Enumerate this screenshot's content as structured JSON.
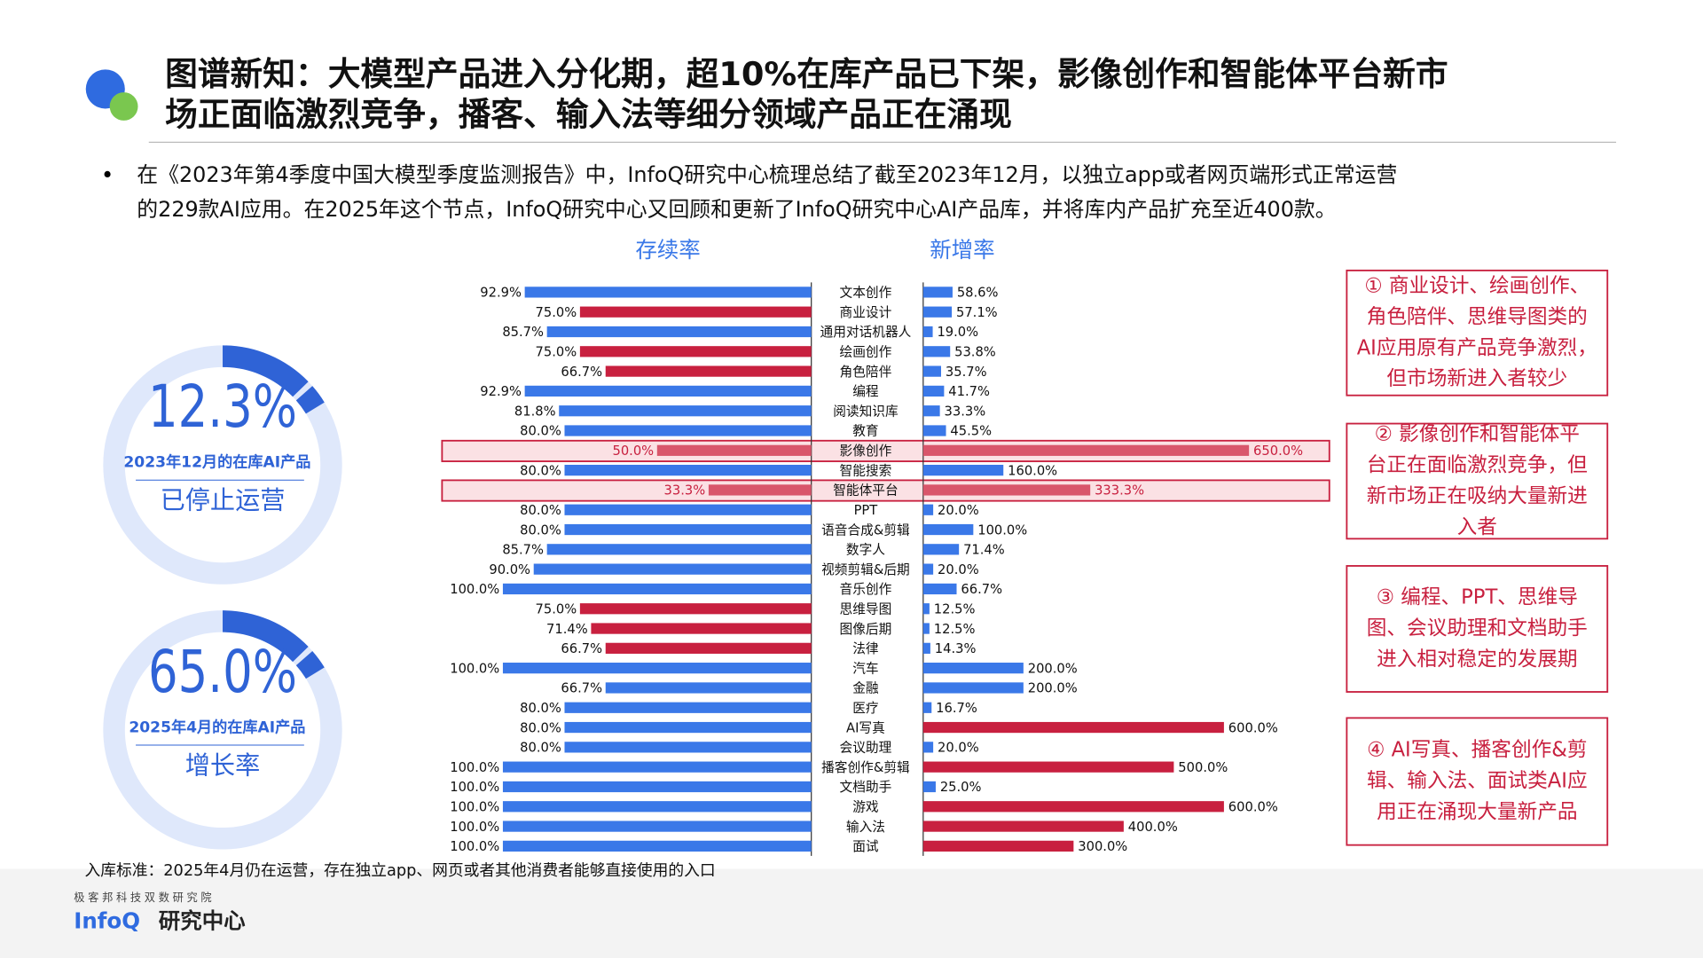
{
  "header": {
    "title_lines": [
      "图谱新知：大模型产品进入分化期，超10%在库产品已下架，影像创作和智能体平台新市",
      "场正面临激烈竞争，播客、输入法等细分领域产品正在涌现"
    ]
  },
  "bullet": {
    "lines": [
      "在《2023年第4季度中国大模型季度监测报告》中，InfoQ研究中心梳理总结了截至2023年12月，以独立app或者网页端形式正常运营",
      "的229款AI应用。在2025年这个节点，InfoQ研究中心又回顾和更新了InfoQ研究中心AI产品库，并将库内产品扩充至近400款。"
    ]
  },
  "kpis": [
    {
      "value": "12.3%",
      "caption": "2023年12月的在库AI产品",
      "label": "已停止运营"
    },
    {
      "value": "65.0%",
      "caption": "2025年4月的在库AI产品",
      "label": "增长率"
    }
  ],
  "chart_data": {
    "type": "butterfly",
    "categories": [
      "文本创作",
      "商业设计",
      "通用对话机器人",
      "绘画创作",
      "角色陪伴",
      "编程",
      "阅读知识库",
      "教育",
      "影像创作",
      "智能搜索",
      "智能体平台",
      "PPT",
      "语音合成&剪辑",
      "数字人",
      "视频剪辑&后期",
      "音乐创作",
      "思维导图",
      "图像后期",
      "法律",
      "汽车",
      "金融",
      "医疗",
      "AI写真",
      "会议助理",
      "播客创作&剪辑",
      "文档助手",
      "游戏",
      "输入法",
      "面试"
    ],
    "xlim": [
      0,
      100
    ],
    "x2lim": [
      0,
      650
    ],
    "highlight_rows": [
      8,
      10
    ],
    "series": [
      {
        "name": "存续率",
        "color": "#3a78e8",
        "colors": [
          "#3a78e8",
          "#c8203f",
          "#3a78e8",
          "#c8203f",
          "#c8203f",
          "#3a78e8",
          "#3a78e8",
          "#3a78e8",
          "#d9566b",
          "#3a78e8",
          "#d9566b",
          "#3a78e8",
          "#3a78e8",
          "#3a78e8",
          "#3a78e8",
          "#3a78e8",
          "#c8203f",
          "#c8203f",
          "#c8203f",
          "#3a78e8",
          "#3a78e8",
          "#3a78e8",
          "#3a78e8",
          "#3a78e8",
          "#3a78e8",
          "#3a78e8",
          "#3a78e8",
          "#3a78e8",
          "#3a78e8"
        ],
        "values": [
          92.9,
          75.0,
          85.7,
          75.0,
          66.7,
          92.9,
          81.8,
          80.0,
          50.0,
          80.0,
          33.3,
          80.0,
          80.0,
          85.7,
          90.0,
          100.0,
          75.0,
          71.4,
          66.7,
          100.0,
          66.7,
          80.0,
          80.0,
          80.0,
          100.0,
          100.0,
          100.0,
          100.0,
          100.0
        ],
        "value_labels": [
          "92.9%",
          "75.0%",
          "85.7%",
          "75.0%",
          "66.7%",
          "92.9%",
          "81.8%",
          "80.0%",
          "50.0%",
          "80.0%",
          "33.3%",
          "80.0%",
          "80.0%",
          "85.7%",
          "90.0%",
          "100.0%",
          "75.0%",
          "71.4%",
          "66.7%",
          "100.0%",
          "66.7%",
          "80.0%",
          "80.0%",
          "80.0%",
          "100.0%",
          "100.0%",
          "100.0%",
          "100.0%",
          "100.0%"
        ]
      },
      {
        "name": "新增率",
        "color": "#3a78e8",
        "axis": "x2",
        "colors": [
          "#3a78e8",
          "#3a78e8",
          "#3a78e8",
          "#3a78e8",
          "#3a78e8",
          "#3a78e8",
          "#3a78e8",
          "#3a78e8",
          "#d9566b",
          "#3a78e8",
          "#d9566b",
          "#3a78e8",
          "#3a78e8",
          "#3a78e8",
          "#3a78e8",
          "#3a78e8",
          "#3a78e8",
          "#3a78e8",
          "#3a78e8",
          "#3a78e8",
          "#3a78e8",
          "#3a78e8",
          "#c8203f",
          "#3a78e8",
          "#c8203f",
          "#3a78e8",
          "#c8203f",
          "#c8203f",
          "#c8203f"
        ],
        "values": [
          58.6,
          57.1,
          19.0,
          53.8,
          35.7,
          41.7,
          33.3,
          45.5,
          650.0,
          160.0,
          333.3,
          20.0,
          100.0,
          71.4,
          20.0,
          66.7,
          12.5,
          12.5,
          14.3,
          200.0,
          200.0,
          16.7,
          600.0,
          20.0,
          500.0,
          25.0,
          600.0,
          400.0,
          300.0
        ],
        "value_labels": [
          "58.6%",
          "57.1%",
          "19.0%",
          "53.8%",
          "35.7%",
          "41.7%",
          "33.3%",
          "45.5%",
          "650.0%",
          "160.0%",
          "333.3%",
          "20.0%",
          "100.0%",
          "71.4%",
          "20.0%",
          "66.7%",
          "12.5%",
          "12.5%",
          "14.3%",
          "200.0%",
          "200.0%",
          "16.7%",
          "600.0%",
          "20.0%",
          "500.0%",
          "25.0%",
          "600.0%",
          "400.0%",
          "300.0%"
        ]
      }
    ]
  },
  "annotations": [
    {
      "lines": [
        "① 商业设计、绘画创作、",
        "角色陪伴、思维导图类的",
        "AI应用原有产品竞争激烈，",
        "但市场新进入者较少"
      ]
    },
    {
      "lines": [
        "② 影像创作和智能体平",
        "台正在面临激烈竞争，但",
        "新市场正在吸纳大量新进",
        "入者"
      ]
    },
    {
      "lines": [
        "③ 编程、PPT、思维导",
        "图、会议助理和文档助手",
        "进入相对稳定的发展期"
      ]
    },
    {
      "lines": [
        "④ AI写真、播客创作&剪",
        "辑、输入法、面试类AI应",
        "用正在涌现大量新产品"
      ]
    }
  ],
  "footnote": "入库标准：2025年4月仍在运营，存在独立app、网页或者其他消费者能够直接使用的入口",
  "footer": {
    "org": "极客邦科技双数研究院",
    "brand": "InfoQ",
    "unit": "研究中心"
  }
}
